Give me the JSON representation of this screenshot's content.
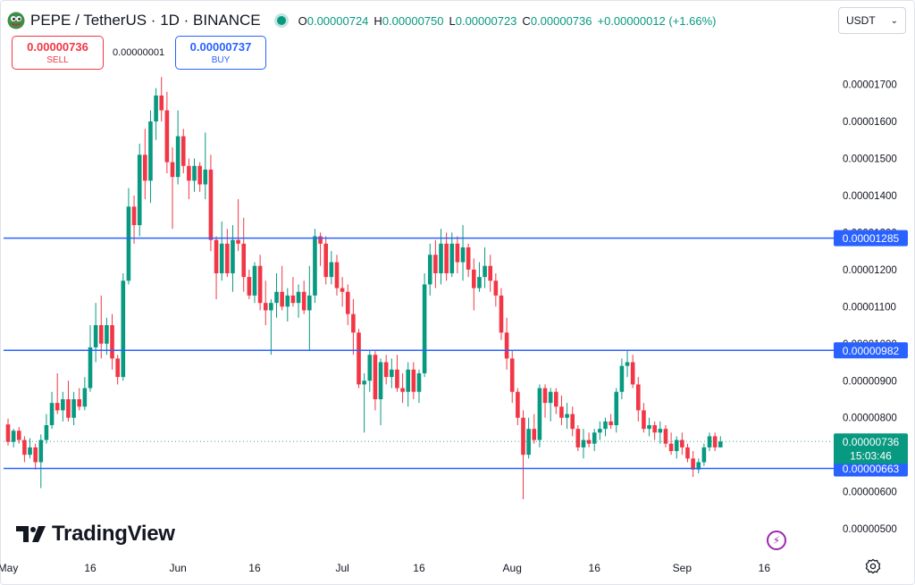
{
  "header": {
    "symbol": "PEPE / TetherUS · 1D · BINANCE",
    "ohlc": [
      {
        "k": "O",
        "v": "0.00000724"
      },
      {
        "k": "H",
        "v": "0.00000750"
      },
      {
        "k": "L",
        "v": "0.00000723"
      },
      {
        "k": "C",
        "v": "0.00000736"
      }
    ],
    "change": "+0.00000012 (+1.66%)"
  },
  "currency": {
    "label": "USDT",
    "chevron": "chevron-down-icon"
  },
  "trade": {
    "sell_price": "0.00000736",
    "sell_label": "SELL",
    "spread": "0.00000001",
    "buy_price": "0.00000737",
    "buy_label": "BUY"
  },
  "brand": {
    "name": "TradingView"
  },
  "colors": {
    "up": "#089981",
    "down": "#f23645",
    "line": "#2962ff",
    "price_tag": "#089981"
  },
  "chart_data": {
    "type": "candlestick",
    "symbol": "PEPE / TetherUS",
    "interval": "1D",
    "exchange": "BINANCE",
    "ylim": [
      4.8e-06,
      1.79e-05
    ],
    "y_ticks": [
      {
        "value": 1.7e-05,
        "label": "0.00001700"
      },
      {
        "value": 1.6e-05,
        "label": "0.00001600"
      },
      {
        "value": 1.5e-05,
        "label": "0.00001500"
      },
      {
        "value": 1.4e-05,
        "label": "0.00001400"
      },
      {
        "value": 1.3e-05,
        "label": "0.00001300"
      },
      {
        "value": 1.2e-05,
        "label": "0.00001200"
      },
      {
        "value": 1.1e-05,
        "label": "0.00001100"
      },
      {
        "value": 1e-05,
        "label": "0.00001000"
      },
      {
        "value": 9e-06,
        "label": "0.00000900"
      },
      {
        "value": 8e-06,
        "label": "0.00000800"
      },
      {
        "value": 6e-06,
        "label": "0.00000600"
      },
      {
        "value": 5e-06,
        "label": "0.00000500"
      }
    ],
    "x_ticks": [
      {
        "day": 0,
        "label": "May"
      },
      {
        "day": 15,
        "label": "16"
      },
      {
        "day": 31,
        "label": "Jun"
      },
      {
        "day": 45,
        "label": "16"
      },
      {
        "day": 61,
        "label": "Jul"
      },
      {
        "day": 75,
        "label": "16"
      },
      {
        "day": 92,
        "label": "Aug"
      },
      {
        "day": 107,
        "label": "16"
      },
      {
        "day": 123,
        "label": "Sep"
      },
      {
        "day": 138,
        "label": "16"
      }
    ],
    "horizontal_lines": [
      {
        "value": 1.285e-05,
        "label": "0.00001285"
      },
      {
        "value": 9.82e-06,
        "label": "0.00000982"
      },
      {
        "value": 6.63e-06,
        "label": "0.00000663"
      }
    ],
    "last_price": {
      "value": 7.36e-06,
      "label": "0.00000736",
      "countdown": "15:03:46"
    },
    "candles": [
      [
        7.82e-06,
        7.98e-06,
        7.25e-06,
        7.35e-06
      ],
      [
        7.35e-06,
        7.7e-06,
        7.2e-06,
        7.65e-06
      ],
      [
        7.65e-06,
        7.75e-06,
        7.3e-06,
        7.4e-06
      ],
      [
        7.4e-06,
        7.5e-06,
        6.8e-06,
        7e-06
      ],
      [
        7e-06,
        7.45e-06,
        6.9e-06,
        7.2e-06
      ],
      [
        7.2e-06,
        7.3e-06,
        6.6e-06,
        6.8e-06
      ],
      [
        6.8e-06,
        7.55e-06,
        6.1e-06,
        7.4e-06
      ],
      [
        7.4e-06,
        8.1e-06,
        7.3e-06,
        7.8e-06
      ],
      [
        7.8e-06,
        8.7e-06,
        7.7e-06,
        8.4e-06
      ],
      [
        8.4e-06,
        9.2e-06,
        8.1e-06,
        8.2e-06
      ],
      [
        8.2e-06,
        8.7e-06,
        7.9e-06,
        8.5e-06
      ],
      [
        8.5e-06,
        9e-06,
        7.9e-06,
        8e-06
      ],
      [
        8e-06,
        8.7e-06,
        7.8e-06,
        8.5e-06
      ],
      [
        8.5e-06,
        8.8e-06,
        8.2e-06,
        8.3e-06
      ],
      [
        8.3e-06,
        9.1e-06,
        8.2e-06,
        8.8e-06
      ],
      [
        8.8e-06,
        1.05e-05,
        8.7e-06,
        9.9e-06
      ],
      [
        9.9e-06,
        1.11e-05,
        9.5e-06,
        1.05e-05
      ],
      [
        1.05e-05,
        1.13e-05,
        9.6e-06,
        1e-05
      ],
      [
        1e-05,
        1.07e-05,
        9.7e-06,
        1.05e-05
      ],
      [
        1.05e-05,
        1.08e-05,
        9.3e-06,
        9.6e-06
      ],
      [
        9.6e-06,
        9.7e-06,
        8.9e-06,
        9.1e-06
      ],
      [
        9.1e-06,
        1.19e-05,
        9e-06,
        1.17e-05
      ],
      [
        1.17e-05,
        1.42e-05,
        1.16e-05,
        1.37e-05
      ],
      [
        1.37e-05,
        1.4e-05,
        1.27e-05,
        1.32e-05
      ],
      [
        1.32e-05,
        1.54e-05,
        1.29e-05,
        1.51e-05
      ],
      [
        1.51e-05,
        1.58e-05,
        1.39e-05,
        1.44e-05
      ],
      [
        1.44e-05,
        1.63e-05,
        1.38e-05,
        1.6e-05
      ],
      [
        1.6e-05,
        1.69e-05,
        1.55e-05,
        1.67e-05
      ],
      [
        1.67e-05,
        1.72e-05,
        1.6e-05,
        1.63e-05
      ],
      [
        1.63e-05,
        1.68e-05,
        1.46e-05,
        1.49e-05
      ],
      [
        1.49e-05,
        1.53e-05,
        1.31e-05,
        1.45e-05
      ],
      [
        1.45e-05,
        1.63e-05,
        1.43e-05,
        1.56e-05
      ],
      [
        1.56e-05,
        1.58e-05,
        1.46e-05,
        1.48e-05
      ],
      [
        1.48e-05,
        1.5e-05,
        1.39e-05,
        1.44e-05
      ],
      [
        1.44e-05,
        1.5e-05,
        1.41e-05,
        1.48e-05
      ],
      [
        1.48e-05,
        1.49e-05,
        1.41e-05,
        1.43e-05
      ],
      [
        1.43e-05,
        1.57e-05,
        1.39e-05,
        1.47e-05
      ],
      [
        1.47e-05,
        1.51e-05,
        1.25e-05,
        1.28e-05
      ],
      [
        1.28e-05,
        1.29e-05,
        1.12e-05,
        1.19e-05
      ],
      [
        1.19e-05,
        1.33e-05,
        1.17e-05,
        1.27e-05
      ],
      [
        1.27e-05,
        1.31e-05,
        1.18e-05,
        1.19e-05
      ],
      [
        1.19e-05,
        1.32e-05,
        1.14e-05,
        1.28e-05
      ],
      [
        1.28e-05,
        1.39e-05,
        1.25e-05,
        1.27e-05
      ],
      [
        1.27e-05,
        1.34e-05,
        1.14e-05,
        1.18e-05
      ],
      [
        1.18e-05,
        1.2e-05,
        1.12e-05,
        1.13e-05
      ],
      [
        1.13e-05,
        1.22e-05,
        1.11e-05,
        1.21e-05
      ],
      [
        1.21e-05,
        1.24e-05,
        1.09e-05,
        1.11e-05
      ],
      [
        1.11e-05,
        1.17e-05,
        1.05e-05,
        1.09e-05
      ],
      [
        1.09e-05,
        1.12e-05,
        9.7e-06,
        1.11e-05
      ],
      [
        1.11e-05,
        1.19e-05,
        1.07e-05,
        1.14e-05
      ],
      [
        1.14e-05,
        1.21e-05,
        1.09e-05,
        1.1e-05
      ],
      [
        1.1e-05,
        1.15e-05,
        1.06e-05,
        1.13e-05
      ],
      [
        1.13e-05,
        1.18e-05,
        1.1e-05,
        1.11e-05
      ],
      [
        1.11e-05,
        1.16e-05,
        1.07e-05,
        1.14e-05
      ],
      [
        1.14e-05,
        1.17e-05,
        1.08e-05,
        1.09e-05
      ],
      [
        1.09e-05,
        1.21e-05,
        9.8e-06,
        1.13e-05
      ],
      [
        1.13e-05,
        1.31e-05,
        1.11e-05,
        1.29e-05
      ],
      [
        1.29e-05,
        1.3e-05,
        1.21e-05,
        1.27e-05
      ],
      [
        1.27e-05,
        1.29e-05,
        1.16e-05,
        1.18e-05
      ],
      [
        1.18e-05,
        1.25e-05,
        1.16e-05,
        1.22e-05
      ],
      [
        1.22e-05,
        1.24e-05,
        1.13e-05,
        1.15e-05
      ],
      [
        1.15e-05,
        1.18e-05,
        1.1e-05,
        1.14e-05
      ],
      [
        1.14e-05,
        1.16e-05,
        1.05e-05,
        1.08e-05
      ],
      [
        1.08e-05,
        1.12e-05,
        9.7e-06,
        1.03e-05
      ],
      [
        1.03e-05,
        1.04e-05,
        8.8e-06,
        8.9e-06
      ],
      [
        8.9e-06,
        9.2e-06,
        7.6e-06,
        9e-06
      ],
      [
        9e-06,
        9.8e-06,
        8.7e-06,
        9.7e-06
      ],
      [
        9.7e-06,
        9.8e-06,
        8.2e-06,
        8.5e-06
      ],
      [
        8.5e-06,
        9.6e-06,
        7.8e-06,
        9.5e-06
      ],
      [
        9.5e-06,
        9.7e-06,
        8.9e-06,
        9.1e-06
      ],
      [
        9.1e-06,
        9.6e-06,
        8.8e-06,
        9.3e-06
      ],
      [
        9.3e-06,
        9.7e-06,
        8.7e-06,
        8.8e-06
      ],
      [
        8.8e-06,
        9.2e-06,
        8.4e-06,
        8.7e-06
      ],
      [
        8.7e-06,
        9.5e-06,
        8.3e-06,
        9.3e-06
      ],
      [
        9.3e-06,
        9.5e-06,
        8.5e-06,
        8.7e-06
      ],
      [
        8.7e-06,
        9.3e-06,
        8.4e-06,
        9.2e-06
      ],
      [
        9.2e-06,
        1.19e-05,
        9.1e-06,
        1.16e-05
      ],
      [
        1.16e-05,
        1.27e-05,
        1.13e-05,
        1.24e-05
      ],
      [
        1.24e-05,
        1.28e-05,
        1.15e-05,
        1.19e-05
      ],
      [
        1.19e-05,
        1.31e-05,
        1.16e-05,
        1.27e-05
      ],
      [
        1.27e-05,
        1.3e-05,
        1.17e-05,
        1.19e-05
      ],
      [
        1.19e-05,
        1.3e-05,
        1.18e-05,
        1.27e-05
      ],
      [
        1.27e-05,
        1.29e-05,
        1.19e-05,
        1.22e-05
      ],
      [
        1.22e-05,
        1.32e-05,
        1.17e-05,
        1.26e-05
      ],
      [
        1.26e-05,
        1.27e-05,
        1.18e-05,
        1.2e-05
      ],
      [
        1.2e-05,
        1.23e-05,
        1.09e-05,
        1.15e-05
      ],
      [
        1.15e-05,
        1.22e-05,
        1.14e-05,
        1.18e-05
      ],
      [
        1.18e-05,
        1.26e-05,
        1.15e-05,
        1.21e-05
      ],
      [
        1.21e-05,
        1.24e-05,
        1.14e-05,
        1.17e-05
      ],
      [
        1.17e-05,
        1.19e-05,
        1.1e-05,
        1.13e-05
      ],
      [
        1.13e-05,
        1.15e-05,
        1.01e-05,
        1.03e-05
      ],
      [
        1.03e-05,
        1.07e-05,
        9.3e-06,
        9.6e-06
      ],
      [
        9.6e-06,
        9.8e-06,
        8.4e-06,
        8.7e-06
      ],
      [
        8.7e-06,
        8.8e-06,
        7.8e-06,
        8e-06
      ],
      [
        8e-06,
        8.2e-06,
        5.8e-06,
        7e-06
      ],
      [
        7e-06,
        8e-06,
        6.9e-06,
        7.7e-06
      ],
      [
        7.7e-06,
        8.1e-06,
        7.3e-06,
        7.4e-06
      ],
      [
        7.4e-06,
        8.9e-06,
        7.2e-06,
        8.8e-06
      ],
      [
        8.8e-06,
        8.9e-06,
        8e-06,
        8.4e-06
      ],
      [
        8.4e-06,
        8.8e-06,
        7.9e-06,
        8.7e-06
      ],
      [
        8.7e-06,
        8.8e-06,
        8.1e-06,
        8.3e-06
      ],
      [
        8.3e-06,
        8.6e-06,
        7.8e-06,
        8e-06
      ],
      [
        8e-06,
        8.4e-06,
        7.7e-06,
        8.1e-06
      ],
      [
        8.1e-06,
        8.3e-06,
        7.5e-06,
        7.7e-06
      ],
      [
        7.7e-06,
        7.8e-06,
        7.1e-06,
        7.2e-06
      ],
      [
        7.2e-06,
        7.7e-06,
        6.9e-06,
        7.4e-06
      ],
      [
        7.4e-06,
        7.6e-06,
        7.2e-06,
        7.3e-06
      ],
      [
        7.3e-06,
        7.7e-06,
        7.1e-06,
        7.6e-06
      ],
      [
        7.6e-06,
        7.9e-06,
        7.4e-06,
        7.7e-06
      ],
      [
        7.7e-06,
        8e-06,
        7.5e-06,
        7.9e-06
      ],
      [
        7.9e-06,
        8.1e-06,
        7.7e-06,
        7.8e-06
      ],
      [
        7.8e-06,
        8.8e-06,
        7.6e-06,
        8.7e-06
      ],
      [
        8.7e-06,
        9.6e-06,
        8.5e-06,
        9.4e-06
      ],
      [
        9.4e-06,
        9.8e-06,
        9.1e-06,
        9.5e-06
      ],
      [
        9.5e-06,
        9.7e-06,
        8.8e-06,
        8.9e-06
      ],
      [
        8.9e-06,
        9.1e-06,
        7.9e-06,
        8.2e-06
      ],
      [
        8.2e-06,
        8.4e-06,
        7.6e-06,
        7.7e-06
      ],
      [
        7.7e-06,
        8e-06,
        7.5e-06,
        7.8e-06
      ],
      [
        7.8e-06,
        7.9e-06,
        7.4e-06,
        7.6e-06
      ],
      [
        7.6e-06,
        7.9e-06,
        7.3e-06,
        7.7e-06
      ],
      [
        7.7e-06,
        7.8e-06,
        7.2e-06,
        7.3e-06
      ],
      [
        7.3e-06,
        7.6e-06,
        7e-06,
        7.1e-06
      ],
      [
        7.1e-06,
        7.5e-06,
        6.9e-06,
        7.4e-06
      ],
      [
        7.4e-06,
        7.6e-06,
        7e-06,
        7.2e-06
      ],
      [
        7.2e-06,
        7.3e-06,
        6.8e-06,
        6.9e-06
      ],
      [
        6.9e-06,
        7.1e-06,
        6.4e-06,
        6.6e-06
      ],
      [
        6.6e-06,
        6.9e-06,
        6.5e-06,
        6.8e-06
      ],
      [
        6.8e-06,
        7.3e-06,
        6.7e-06,
        7.2e-06
      ],
      [
        7.2e-06,
        7.6e-06,
        7.1e-06,
        7.5e-06
      ],
      [
        7.5e-06,
        7.6e-06,
        7.1e-06,
        7.2e-06
      ],
      [
        7.2e-06,
        7.5e-06,
        7.2e-06,
        7.36e-06
      ]
    ]
  }
}
